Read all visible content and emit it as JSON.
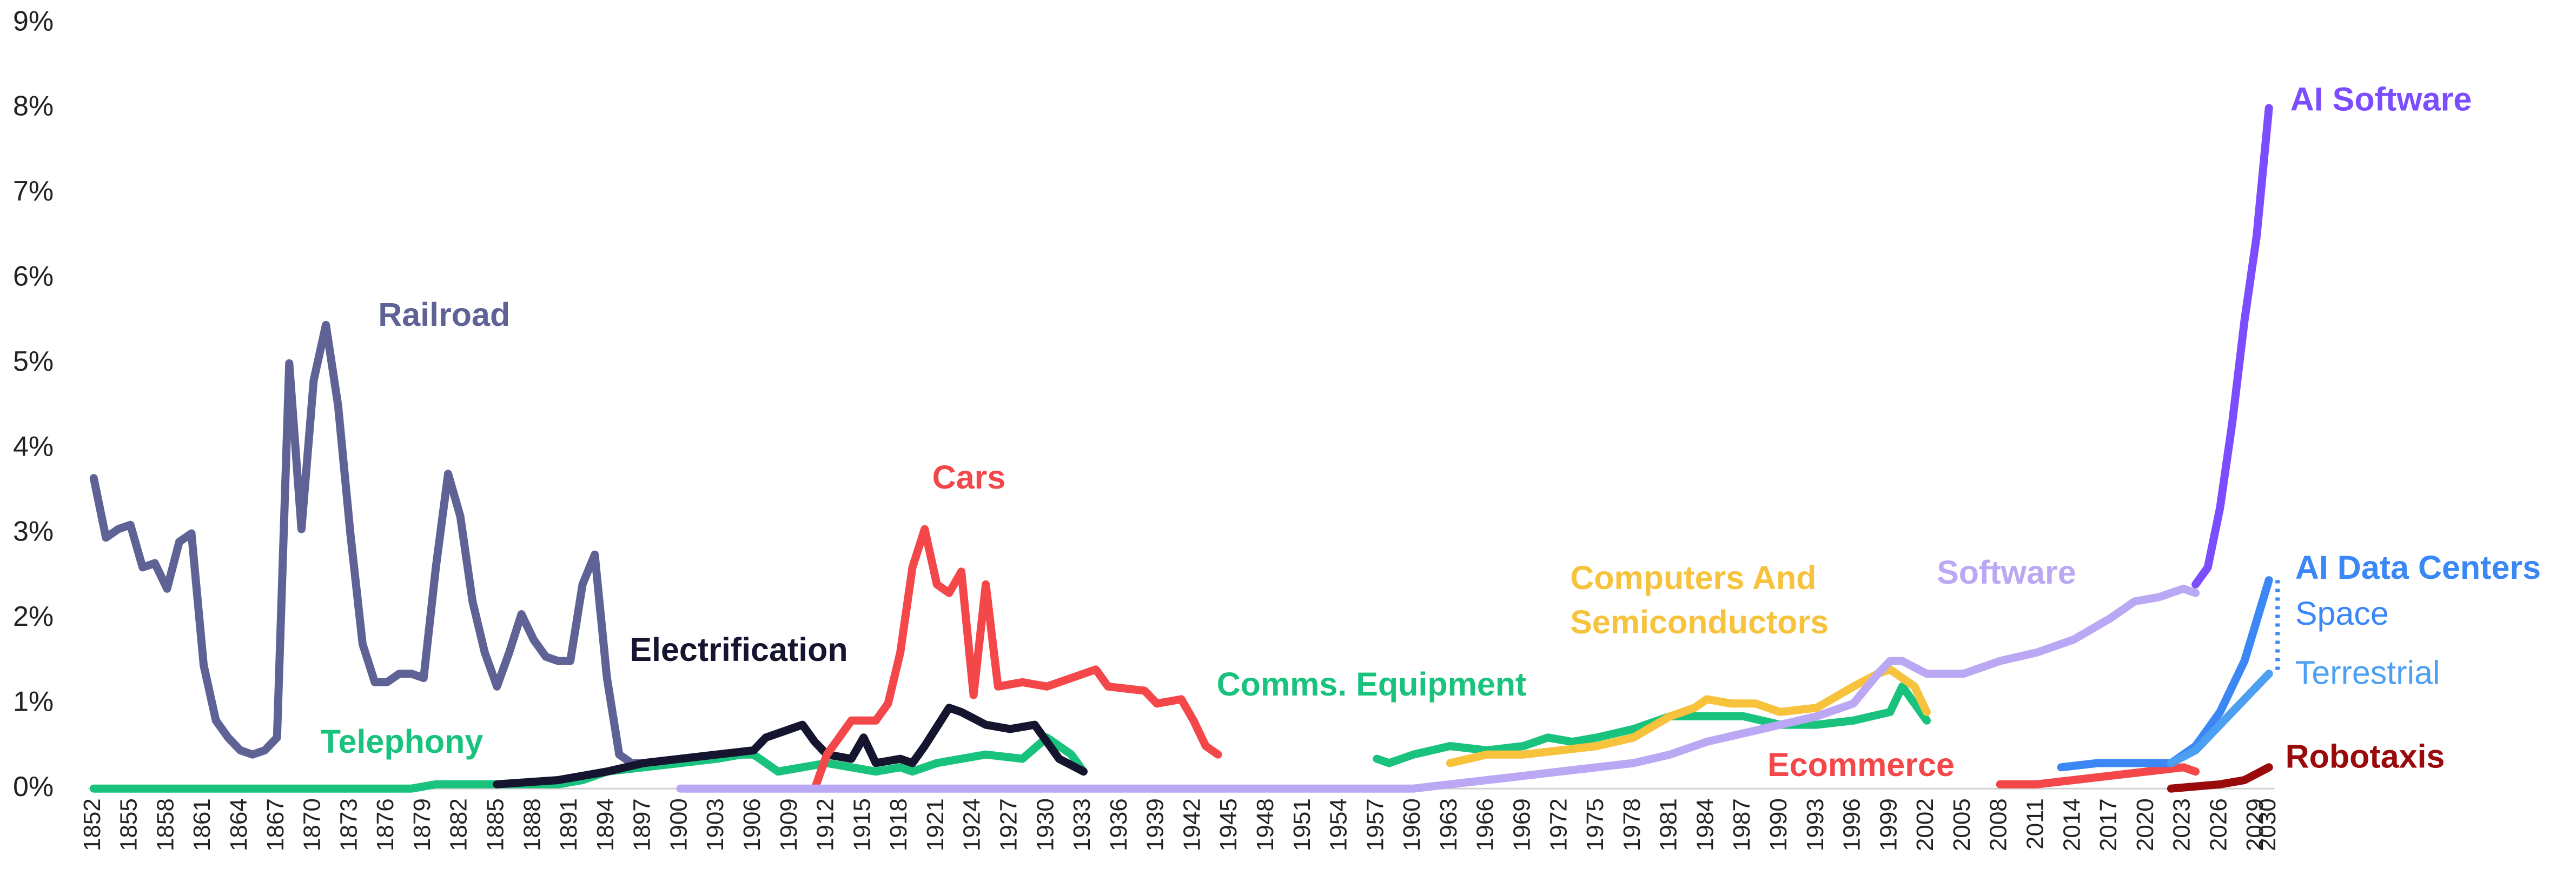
{
  "chart_data": {
    "type": "line",
    "xlim": [
      1852,
      2030
    ],
    "xticks": [
      1852,
      1855,
      1858,
      1861,
      1864,
      1867,
      1870,
      1873,
      1876,
      1879,
      1882,
      1885,
      1888,
      1891,
      1894,
      1897,
      1900,
      1903,
      1906,
      1909,
      1912,
      1915,
      1918,
      1921,
      1924,
      1927,
      1930,
      1933,
      1936,
      1939,
      1942,
      1945,
      1948,
      1951,
      1954,
      1957,
      1960,
      1963,
      1966,
      1969,
      1972,
      1975,
      1978,
      1981,
      1984,
      1987,
      1990,
      1993,
      1996,
      1999,
      2002,
      2005,
      2008,
      2011,
      2014,
      2017,
      2020,
      2023,
      2026,
      2029,
      2030
    ],
    "ylim": [
      0,
      9
    ],
    "yticks": [
      {
        "value": 0,
        "label": "0%"
      },
      {
        "value": 1,
        "label": "1%"
      },
      {
        "value": 2,
        "label": "2%"
      },
      {
        "value": 3,
        "label": "3%"
      },
      {
        "value": 4,
        "label": "4%"
      },
      {
        "value": 5,
        "label": "5%"
      },
      {
        "value": 6,
        "label": "6%"
      },
      {
        "value": 7,
        "label": "7%"
      },
      {
        "value": 8,
        "label": "8%"
      },
      {
        "value": 9,
        "label": "9%"
      }
    ],
    "grid": false,
    "series": [
      {
        "name": "Railroad",
        "color": "#5e6294",
        "x": [
          1852,
          1853,
          1854,
          1855,
          1856,
          1857,
          1858,
          1859,
          1860,
          1861,
          1862,
          1863,
          1864,
          1865,
          1866,
          1867,
          1868,
          1869,
          1870,
          1871,
          1872,
          1873,
          1874,
          1875,
          1876,
          1877,
          1878,
          1879,
          1880,
          1881,
          1882,
          1883,
          1884,
          1885,
          1886,
          1887,
          1888,
          1889,
          1890,
          1891,
          1892,
          1893,
          1894,
          1895,
          1896,
          1897
        ],
        "values": [
          3.65,
          2.95,
          3.05,
          3.1,
          2.6,
          2.65,
          2.35,
          2.9,
          3.0,
          1.45,
          0.8,
          0.6,
          0.45,
          0.4,
          0.45,
          0.6,
          5.0,
          3.05,
          4.8,
          5.45,
          4.5,
          3.0,
          1.7,
          1.25,
          1.25,
          1.35,
          1.35,
          1.3,
          2.6,
          3.7,
          3.2,
          2.2,
          1.6,
          1.2,
          1.6,
          2.05,
          1.75,
          1.55,
          1.5,
          1.5,
          2.4,
          2.75,
          1.3,
          0.4,
          0.3,
          0.3
        ]
      },
      {
        "name": "Telephony",
        "color": "#19c27d",
        "x": [
          1852,
          1878,
          1880,
          1890,
          1892,
          1894,
          1897,
          1900,
          1903,
          1905,
          1906,
          1908,
          1910,
          1912,
          1914,
          1916,
          1918,
          1919,
          1921,
          1923,
          1925,
          1928,
          1930,
          1932,
          1933
        ],
        "values": [
          0,
          0,
          0.05,
          0.05,
          0.1,
          0.2,
          0.25,
          0.3,
          0.35,
          0.4,
          0.4,
          0.2,
          0.25,
          0.3,
          0.25,
          0.2,
          0.25,
          0.2,
          0.3,
          0.35,
          0.4,
          0.35,
          0.6,
          0.4,
          0.2
        ]
      },
      {
        "name": "Electrification",
        "color": "#15152f",
        "x": [
          1885,
          1890,
          1894,
          1897,
          1900,
          1903,
          1906,
          1907,
          1909,
          1910,
          1911,
          1912,
          1914,
          1915,
          1916,
          1918,
          1919,
          1920,
          1922,
          1923,
          1925,
          1927,
          1929,
          1930,
          1931,
          1933
        ],
        "values": [
          0.05,
          0.1,
          0.2,
          0.3,
          0.35,
          0.4,
          0.45,
          0.6,
          0.7,
          0.75,
          0.55,
          0.4,
          0.35,
          0.6,
          0.3,
          0.35,
          0.3,
          0.5,
          0.95,
          0.9,
          0.75,
          0.7,
          0.75,
          0.55,
          0.35,
          0.2
        ]
      },
      {
        "name": "Cars",
        "color": "#f4474a",
        "x": [
          1911,
          1912,
          1913,
          1914,
          1916,
          1917,
          1918,
          1919,
          1920,
          1921,
          1922,
          1923,
          1924,
          1925,
          1926,
          1928,
          1930,
          1932,
          1934,
          1935,
          1938,
          1939,
          1941,
          1942,
          1943,
          1944
        ],
        "values": [
          0,
          0.4,
          0.6,
          0.8,
          0.8,
          1.0,
          1.6,
          2.6,
          3.05,
          2.4,
          2.3,
          2.55,
          1.1,
          2.4,
          1.2,
          1.25,
          1.2,
          1.3,
          1.4,
          1.2,
          1.15,
          1.0,
          1.05,
          0.8,
          0.5,
          0.4
        ]
      },
      {
        "name": "Comms. Equipment",
        "color": "#19c27d",
        "x": [
          1957,
          1958,
          1960,
          1963,
          1966,
          1969,
          1971,
          1973,
          1975,
          1978,
          1981,
          1984,
          1987,
          1990,
          1993,
          1996,
          1999,
          2000,
          2001,
          2002
        ],
        "values": [
          0.35,
          0.3,
          0.4,
          0.5,
          0.45,
          0.5,
          0.6,
          0.55,
          0.6,
          0.7,
          0.85,
          0.85,
          0.85,
          0.75,
          0.75,
          0.8,
          0.9,
          1.2,
          1.0,
          0.8
        ]
      },
      {
        "name": "Computers And Semiconductors",
        "color": "#f7c23c",
        "x": [
          1963,
          1966,
          1969,
          1972,
          1975,
          1978,
          1981,
          1983,
          1984,
          1986,
          1988,
          1990,
          1993,
          1996,
          1998,
          1999,
          2000,
          2001,
          2002
        ],
        "values": [
          0.3,
          0.4,
          0.4,
          0.45,
          0.5,
          0.6,
          0.85,
          0.95,
          1.05,
          1.0,
          1.0,
          0.9,
          0.95,
          1.2,
          1.35,
          1.4,
          1.3,
          1.2,
          0.9
        ]
      },
      {
        "name": "Software",
        "color": "#bba8f4",
        "x": [
          1900,
          1960,
          1963,
          1966,
          1969,
          1972,
          1975,
          1978,
          1981,
          1984,
          1987,
          1990,
          1993,
          1996,
          1998,
          1999,
          2000,
          2002,
          2005,
          2008,
          2011,
          2014,
          2017,
          2019,
          2021,
          2023,
          2024
        ],
        "values": [
          0,
          0,
          0.05,
          0.1,
          0.15,
          0.2,
          0.25,
          0.3,
          0.4,
          0.55,
          0.65,
          0.75,
          0.85,
          1.0,
          1.35,
          1.5,
          1.5,
          1.35,
          1.35,
          1.5,
          1.6,
          1.75,
          2.0,
          2.2,
          2.25,
          2.35,
          2.3
        ]
      },
      {
        "name": "Ecommerce",
        "color": "#f4474a",
        "x": [
          2008,
          2011,
          2014,
          2017,
          2020,
          2023,
          2024
        ],
        "values": [
          0.05,
          0.05,
          0.1,
          0.15,
          0.2,
          0.25,
          0.2
        ]
      },
      {
        "name": "AI Software",
        "color": "#7c4dff",
        "x": [
          2024,
          2025,
          2026,
          2027,
          2028,
          2029,
          2030
        ],
        "values": [
          2.4,
          2.6,
          3.3,
          4.3,
          5.5,
          6.5,
          8.0
        ]
      },
      {
        "name": "AI Data Centers",
        "color": "#3a87f5",
        "x": [
          2013,
          2016,
          2019,
          2022,
          2024,
          2026,
          2028,
          2030
        ],
        "values": [
          0.25,
          0.3,
          0.3,
          0.3,
          0.5,
          0.9,
          1.5,
          2.45
        ]
      },
      {
        "name": "Terrestrial",
        "color": "#4d9ff2",
        "x": [
          2022,
          2024,
          2026,
          2028,
          2030
        ],
        "values": [
          0.3,
          0.45,
          0.75,
          1.05,
          1.35
        ]
      },
      {
        "name": "Robotaxis",
        "color": "#9b0a0a",
        "x": [
          2022,
          2026,
          2028,
          2030
        ],
        "values": [
          0,
          0.05,
          0.1,
          0.25
        ]
      }
    ],
    "annotations": [
      {
        "text": "Space"
      }
    ]
  }
}
